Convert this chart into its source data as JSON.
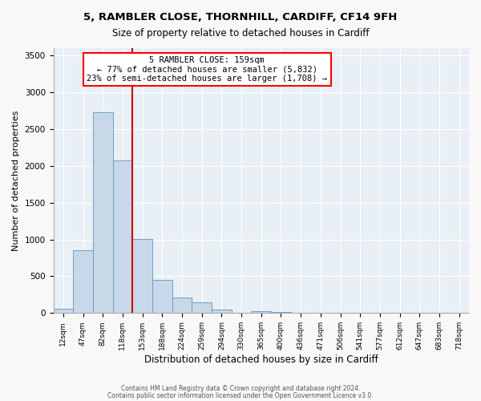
{
  "title": "5, RAMBLER CLOSE, THORNHILL, CARDIFF, CF14 9FH",
  "subtitle": "Size of property relative to detached houses in Cardiff",
  "xlabel": "Distribution of detached houses by size in Cardiff",
  "ylabel": "Number of detached properties",
  "bar_color": "#c8d8e8",
  "bar_edge_color": "#6aa0c8",
  "background_color": "#e8eff5",
  "vline_color": "#cc0000",
  "vline_x": 4.0,
  "bin_labels": [
    "12sqm",
    "47sqm",
    "82sqm",
    "118sqm",
    "153sqm",
    "188sqm",
    "224sqm",
    "259sqm",
    "294sqm",
    "330sqm",
    "365sqm",
    "400sqm",
    "436sqm",
    "471sqm",
    "506sqm",
    "541sqm",
    "577sqm",
    "612sqm",
    "647sqm",
    "683sqm",
    "718sqm"
  ],
  "bar_heights": [
    55,
    855,
    2725,
    2075,
    1010,
    455,
    210,
    145,
    50,
    0,
    30,
    10,
    0,
    0,
    0,
    0,
    0,
    0,
    0,
    0,
    0
  ],
  "ylim": [
    0,
    3600
  ],
  "yticks": [
    0,
    500,
    1000,
    1500,
    2000,
    2500,
    3000,
    3500
  ],
  "annotation_text": "5 RAMBLER CLOSE: 159sqm\n← 77% of detached houses are smaller (5,832)\n23% of semi-detached houses are larger (1,708) →",
  "footer1": "Contains HM Land Registry data © Crown copyright and database right 2024.",
  "footer2": "Contains public sector information licensed under the Open Government Licence v3.0."
}
